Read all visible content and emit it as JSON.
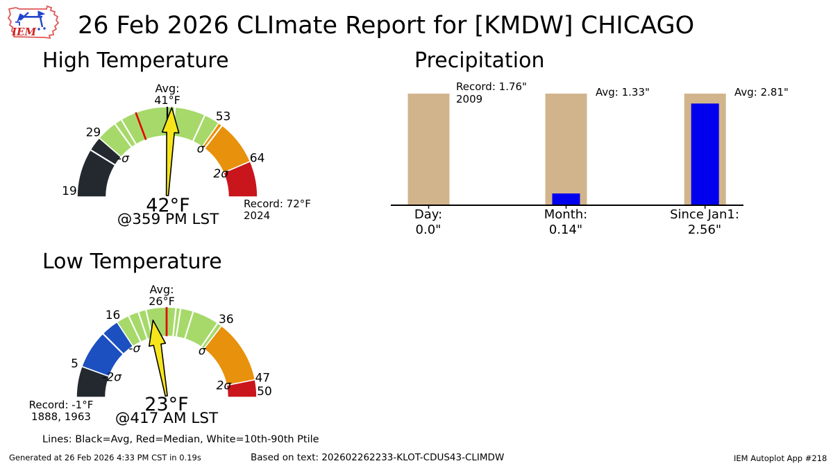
{
  "header": {
    "title": "26 Feb 2026 CLImate Report for [KMDW] CHICAGO",
    "logo_text": "IEM"
  },
  "legend_note": "Lines: Black=Avg, Red=Median, White=10th-90th Ptile",
  "footer": {
    "left": "Generated at 26 Feb 2026 4:33 PM CST in 0.19s",
    "center": "Based on text: 202602262233-KLOT-CDUS43-CLIMDW",
    "right": "IEM Autoplot App #218"
  },
  "colors": {
    "dark": "#23292f",
    "blue": "#1c4fc0",
    "green": "#a6d96a",
    "orange": "#e8910c",
    "red": "#c9151c",
    "tan": "#d2b48c",
    "bar_blue": "#0000ee",
    "needle_fill": "#f7e51b",
    "median_red": "#e60000",
    "avg_black": "#000000",
    "ptile_white": "#ffffff"
  },
  "chart_data": [
    {
      "type": "gauge",
      "id": "high",
      "title": "High Temperature",
      "scale": {
        "start": 19,
        "avg": 41,
        "end": 72
      },
      "segments": [
        {
          "from": 19,
          "to": 29,
          "color_key": "dark"
        },
        {
          "from": 29,
          "to": 53,
          "color_key": "green"
        },
        {
          "from": 53,
          "to": 64,
          "color_key": "orange"
        },
        {
          "from": 64,
          "to": 72,
          "color_key": "red"
        }
      ],
      "percentile_lines": [
        26.7,
        32.3,
        33.5,
        42.7,
        49.5,
        53.9
      ],
      "median_line": 36,
      "avg_line": 41,
      "needle_value": 42,
      "tick_labels": [
        {
          "value": 19,
          "text": "19"
        },
        {
          "value": 29,
          "text": "29"
        },
        {
          "value": 53,
          "text": "53"
        },
        {
          "value": 64,
          "text": "64"
        }
      ],
      "sigma_labels": [
        {
          "value": 29,
          "text": "-σ"
        },
        {
          "value": 53,
          "text": "σ"
        },
        {
          "value": 64,
          "text": "2σ"
        }
      ],
      "avg_callout": {
        "line1": "Avg:",
        "line2": "41°F"
      },
      "record_callout": {
        "line1": "Record: 72°F",
        "line2": "2024"
      },
      "center_value": "42°F",
      "center_time": "@359 PM LST"
    },
    {
      "type": "gauge",
      "id": "low",
      "title": "Low Temperature",
      "scale": {
        "start": -1,
        "avg": 26,
        "end": 50
      },
      "segments": [
        {
          "from": -1,
          "to": 5,
          "color_key": "dark"
        },
        {
          "from": 5,
          "to": 16,
          "color_key": "blue"
        },
        {
          "from": 16,
          "to": 36,
          "color_key": "green"
        },
        {
          "from": 36,
          "to": 47,
          "color_key": "orange"
        },
        {
          "from": 47,
          "to": 50,
          "color_key": "red"
        }
      ],
      "percentile_lines": [
        12.5,
        18.5,
        20.5,
        22,
        27.6,
        28.4,
        30.6,
        35.2
      ],
      "median_line": 26,
      "avg_line": 26,
      "needle_value": 23,
      "tick_labels": [
        {
          "value": 5,
          "text": "5"
        },
        {
          "value": 16,
          "text": "16"
        },
        {
          "value": 36,
          "text": "36"
        },
        {
          "value": 47,
          "text": "47"
        },
        {
          "value": 50,
          "text": "50"
        }
      ],
      "sigma_labels": [
        {
          "value": 5,
          "text": "-2σ"
        },
        {
          "value": 16,
          "text": "-σ"
        },
        {
          "value": 36,
          "text": "σ"
        },
        {
          "value": 47,
          "text": "2σ"
        }
      ],
      "avg_callout": {
        "line1": "Avg:",
        "line2": "26°F"
      },
      "record_callout": {
        "line1": "Record: -1°F",
        "line2": "1888, 1963"
      },
      "center_value": "23°F",
      "center_time": "@417 AM LST"
    },
    {
      "type": "bar",
      "id": "precip",
      "title": "Precipitation",
      "unit": "inches",
      "groups": [
        {
          "label": "Day:",
          "value": 0.0,
          "value_text": "0.0\"",
          "reference": 1.76,
          "annotation_line1": "Record: 1.76\"",
          "annotation_line2": "2009"
        },
        {
          "label": "Month:",
          "value": 0.14,
          "value_text": "0.14\"",
          "reference": 1.33,
          "annotation_line1": "Avg: 1.33\"",
          "annotation_line2": ""
        },
        {
          "label": "Since Jan1:",
          "value": 2.56,
          "value_text": "2.56\"",
          "reference": 2.81,
          "annotation_line1": "Avg: 2.81\"",
          "annotation_line2": ""
        }
      ]
    }
  ]
}
